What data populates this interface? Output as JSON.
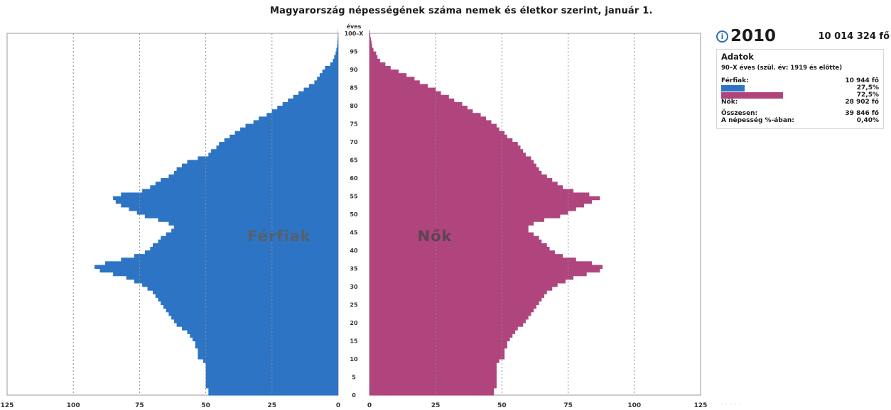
{
  "title": "Magyarország népességének száma nemek és életkor szerint, január 1.",
  "year_icon": "info-circle-icon",
  "year": "2010",
  "total_population": "10 014 324 fő",
  "details": {
    "heading": "Adatok",
    "age_range": "90–X éves (szül. év: 1919 és előtte)",
    "male_label": "Férfiak:",
    "male_value": "10 944 fő",
    "male_pct": "27,5%",
    "male_pct_value": 27.5,
    "female_pct": "72,5%",
    "female_pct_value": 72.5,
    "female_label": "Nők:",
    "female_value": "28 902 fő",
    "sum_label": "Összesen:",
    "sum_value": "39 846 fő",
    "share_label": "A népesség %-ában:",
    "share_value": "0,40%"
  },
  "chart_data": {
    "type": "bar",
    "orientation": "horizontal-pyramid",
    "y_axis_title": "éves",
    "y_ticks": [
      "0",
      "5",
      "10",
      "15",
      "20",
      "25",
      "30",
      "35",
      "40",
      "45",
      "50",
      "55",
      "60",
      "65",
      "70",
      "75",
      "80",
      "85",
      "90",
      "95",
      "100–X"
    ],
    "x_ticks_left": [
      "125",
      "100",
      "75",
      "50",
      "25",
      "0"
    ],
    "x_ticks_right": [
      "0",
      "25",
      "50",
      "75",
      "100",
      "125"
    ],
    "x_max": 125,
    "ages": [
      0,
      1,
      2,
      3,
      4,
      5,
      6,
      7,
      8,
      9,
      10,
      11,
      12,
      13,
      14,
      15,
      16,
      17,
      18,
      19,
      20,
      21,
      22,
      23,
      24,
      25,
      26,
      27,
      28,
      29,
      30,
      31,
      32,
      33,
      34,
      35,
      36,
      37,
      38,
      39,
      40,
      41,
      42,
      43,
      44,
      45,
      46,
      47,
      48,
      49,
      50,
      51,
      52,
      53,
      54,
      55,
      56,
      57,
      58,
      59,
      60,
      61,
      62,
      63,
      64,
      65,
      66,
      67,
      68,
      69,
      70,
      71,
      72,
      73,
      74,
      75,
      76,
      77,
      78,
      79,
      80,
      81,
      82,
      83,
      84,
      85,
      86,
      87,
      88,
      89,
      90,
      91,
      92,
      93,
      94,
      95,
      96,
      97,
      98,
      99,
      100
    ],
    "series": [
      {
        "name": "Férfiak",
        "color": "#2e74c4",
        "values": [
          49,
          49,
          50,
          50,
          50,
          50,
          50,
          50,
          50,
          51,
          53,
          53,
          53,
          54,
          54,
          55,
          56,
          57,
          59,
          61,
          62,
          63,
          64,
          65,
          66,
          67,
          68,
          69,
          70,
          72,
          74,
          77,
          80,
          85,
          90,
          92,
          88,
          82,
          77,
          73,
          71,
          70,
          68,
          67,
          65,
          63,
          62,
          64,
          68,
          73,
          76,
          79,
          82,
          84,
          85,
          82,
          74,
          71,
          69,
          67,
          64,
          62,
          61,
          59,
          57,
          53,
          49,
          48,
          46,
          45,
          43,
          41,
          39,
          37,
          35,
          32,
          30,
          27,
          25,
          23,
          21,
          19,
          17,
          15,
          13,
          11,
          9,
          8,
          7,
          6,
          5,
          3,
          2,
          1.5,
          1,
          0.7,
          0.4,
          0.3,
          0.2,
          0.1,
          0.1
        ]
      },
      {
        "name": "Nők",
        "color": "#b0457e",
        "values": [
          47,
          47,
          48,
          48,
          48,
          48,
          48,
          48,
          48,
          49,
          51,
          51,
          51,
          52,
          52,
          53,
          54,
          55,
          56,
          58,
          59,
          60,
          61,
          62,
          63,
          64,
          65,
          66,
          67,
          69,
          71,
          74,
          77,
          82,
          87,
          88,
          84,
          78,
          73,
          70,
          68,
          67,
          65,
          64,
          62,
          60,
          60,
          62,
          66,
          72,
          75,
          78,
          81,
          84,
          87,
          83,
          77,
          73,
          71,
          69,
          67,
          65,
          64,
          63,
          62,
          61,
          59,
          58,
          57,
          56,
          54,
          52,
          51,
          49,
          48,
          46,
          44,
          42,
          39,
          37,
          35,
          32,
          30,
          27,
          25,
          22,
          19,
          17,
          14,
          11,
          8,
          6,
          4,
          3,
          2.5,
          1.5,
          1,
          0.8,
          0.5,
          0.3,
          0.2
        ]
      }
    ],
    "annotations": [
      "Férfiak",
      "Nők"
    ]
  },
  "colors": {
    "male": "#2e74c4",
    "female": "#b0457e",
    "grid": "#8c8c8c"
  }
}
